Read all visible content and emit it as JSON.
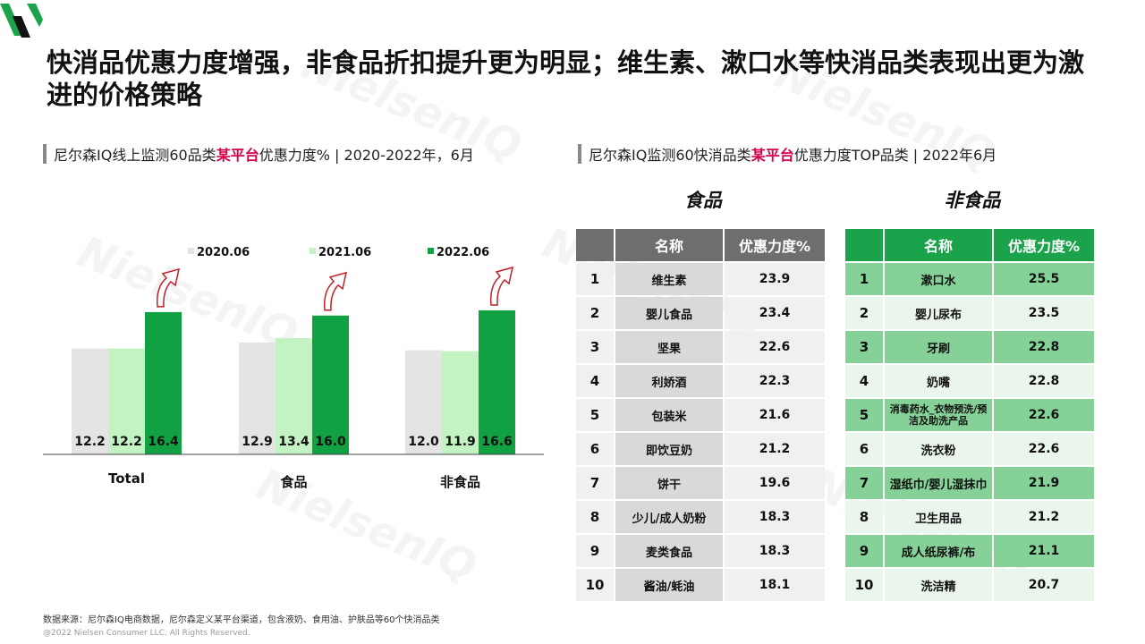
{
  "title": "快消品优惠力度增强，非食品折扣提升更为明显；维生素、漱口水等快消品类表现出更为激进的价格策略",
  "watermark": "NielsenIQ",
  "left_subtitle": {
    "prefix": "尼尔森IQ线上监测60品类",
    "highlight": "某平台",
    "suffix": " 优惠力度% | 2020-2022年，6月"
  },
  "right_subtitle": {
    "prefix": "尼尔森IQ监测60快消品类",
    "highlight": "某平台",
    "suffix": " 优惠力度TOP品类 | 2022年6月"
  },
  "chart_data": {
    "type": "bar",
    "categories": [
      "Total",
      "食品",
      "非食品"
    ],
    "series": [
      {
        "name": "2020.06",
        "values": [
          12.2,
          12.9,
          12.0
        ],
        "color": "#e4e4e4"
      },
      {
        "name": "2021.06",
        "values": [
          12.2,
          13.4,
          11.9
        ],
        "color": "#c3f3c3"
      },
      {
        "name": "2022.06",
        "values": [
          16.4,
          16.0,
          16.6
        ],
        "color": "#12a142"
      }
    ],
    "legend": "top",
    "grid": false,
    "arrow_color": "#c0202a"
  },
  "food_table": {
    "heading": "食品",
    "columns": [
      "",
      "名称",
      "优惠力度%"
    ],
    "rows": [
      {
        "rank": "1",
        "name": "维生素",
        "value": "23.9"
      },
      {
        "rank": "2",
        "name": "婴儿食品",
        "value": "23.4"
      },
      {
        "rank": "3",
        "name": "坚果",
        "value": "22.6"
      },
      {
        "rank": "4",
        "name": "利娇酒",
        "value": "22.3"
      },
      {
        "rank": "5",
        "name": "包装米",
        "value": "21.6"
      },
      {
        "rank": "6",
        "name": "即饮豆奶",
        "value": "21.2"
      },
      {
        "rank": "7",
        "name": "饼干",
        "value": "19.6"
      },
      {
        "rank": "8",
        "name": "少儿/成人奶粉",
        "value": "18.3"
      },
      {
        "rank": "9",
        "name": "麦类食品",
        "value": "18.3"
      },
      {
        "rank": "10",
        "name": "酱油/蚝油",
        "value": "18.1"
      }
    ]
  },
  "nonfood_table": {
    "heading": "非食品",
    "columns": [
      "",
      "名称",
      "优惠力度%"
    ],
    "rows": [
      {
        "rank": "1",
        "name": "漱口水",
        "value": "25.5"
      },
      {
        "rank": "2",
        "name": "婴儿尿布",
        "value": "23.5"
      },
      {
        "rank": "3",
        "name": "牙刷",
        "value": "22.8"
      },
      {
        "rank": "4",
        "name": "奶嘴",
        "value": "22.8"
      },
      {
        "rank": "5",
        "name": "消毒药水_衣物预洗/预洁及助洗产品",
        "value": "22.6"
      },
      {
        "rank": "6",
        "name": "洗衣粉",
        "value": "22.6"
      },
      {
        "rank": "7",
        "name": "湿纸巾/婴儿湿抹巾",
        "value": "21.9"
      },
      {
        "rank": "8",
        "name": "卫生用品",
        "value": "21.2"
      },
      {
        "rank": "9",
        "name": "成人纸尿裤/布",
        "value": "21.1"
      },
      {
        "rank": "10",
        "name": "洗洁精",
        "value": "20.7"
      }
    ]
  },
  "footer": {
    "source": "数据来源：尼尔森IQ电商数据，尼尔森定义某平台渠道，包含液奶、食用油、护肤品等60个快消品类",
    "copyright": "@2022 Nielsen Consumer LLC. All Rights Reserved."
  }
}
